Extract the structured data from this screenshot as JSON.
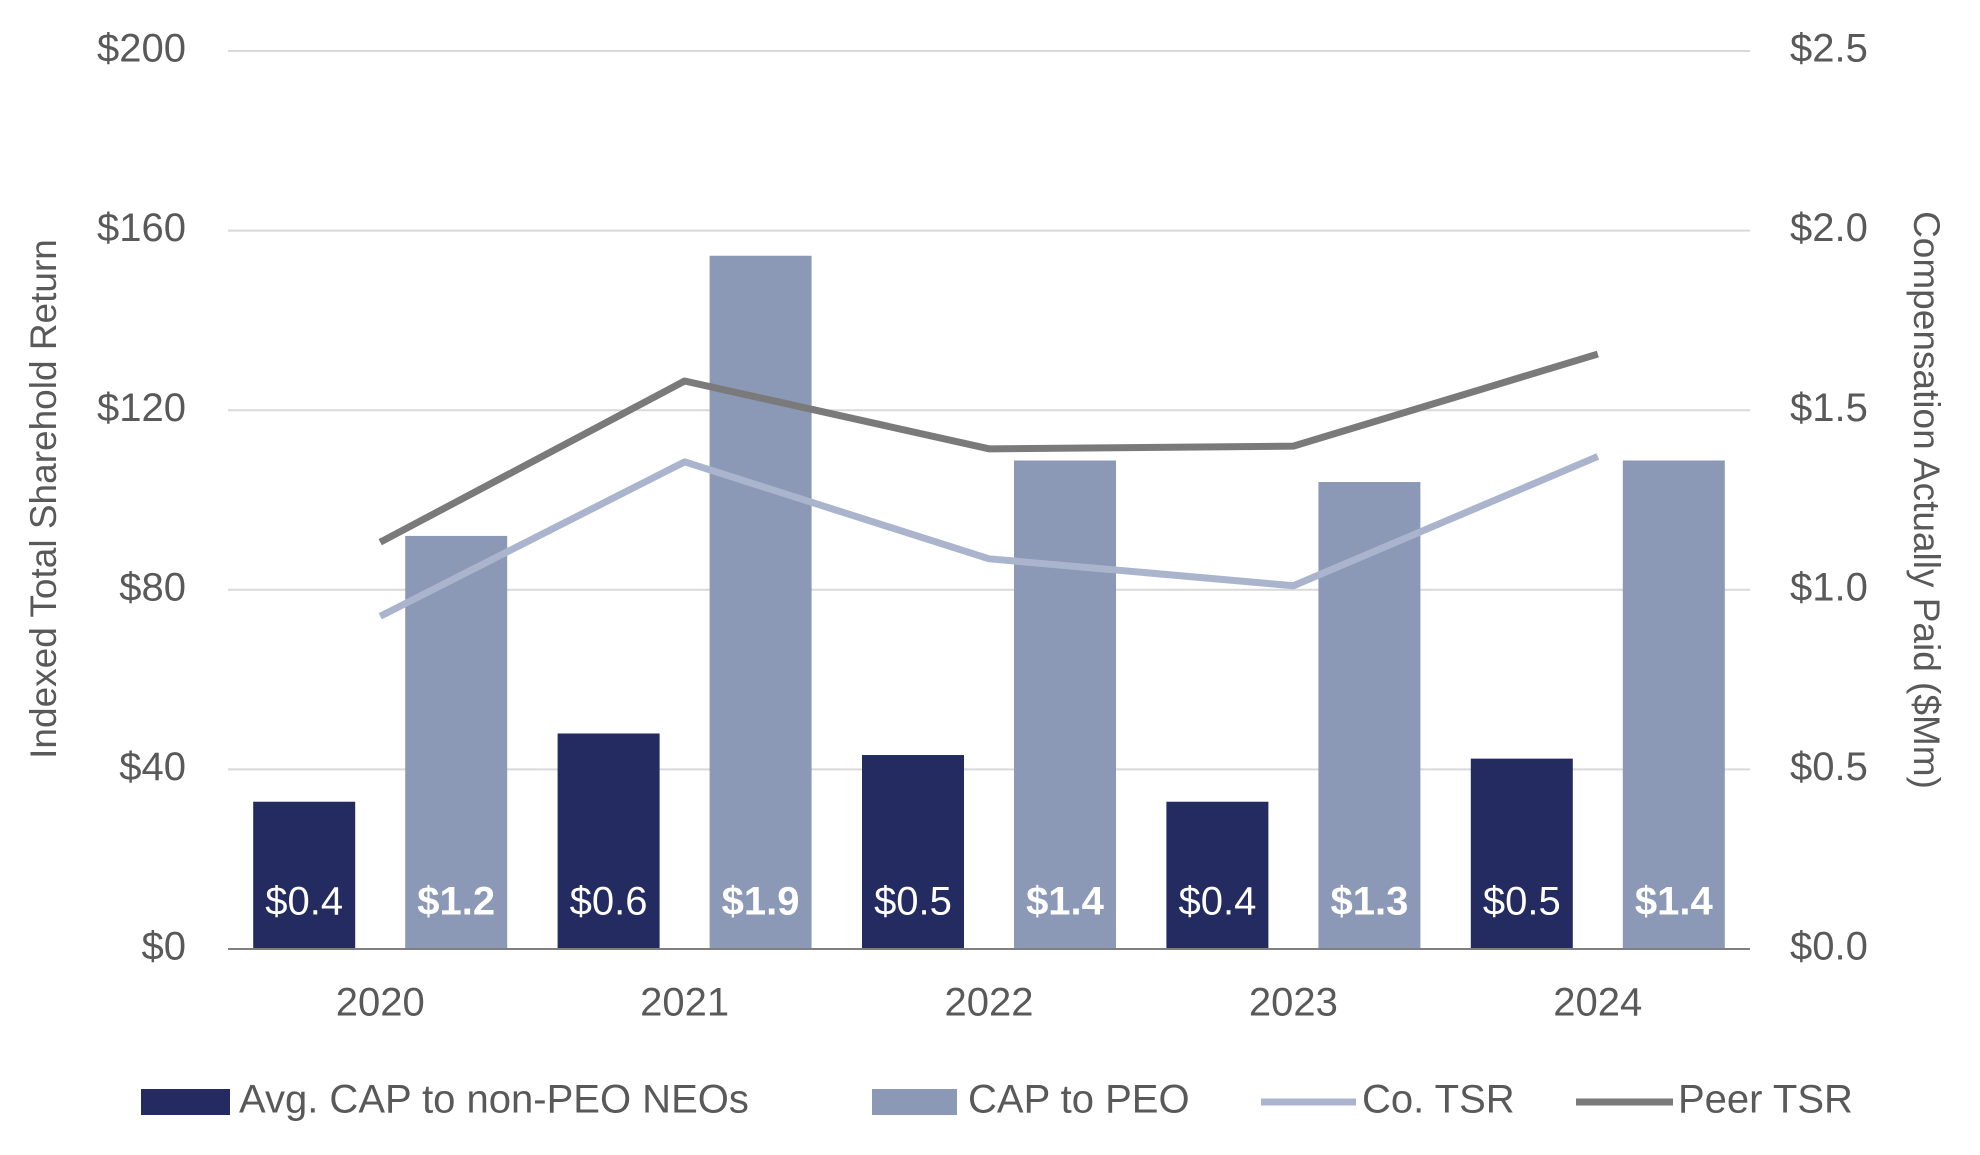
{
  "chart_data": {
    "type": "bar-line",
    "y_label": "Indexed Total Sharehold Return",
    "y2_label": "Compensation Actually Paid ($Mm)",
    "categories": [
      "2020",
      "2021",
      "2022",
      "2023",
      "2024"
    ],
    "series": [
      {
        "name": "Avg. CAP to non-PEO NEOs",
        "type": "bar",
        "axis": "y2",
        "color": "#232b60",
        "values": [
          0.41,
          0.6,
          0.54,
          0.41,
          0.53
        ],
        "value_labels": [
          "$0.4",
          "$0.6",
          "$0.5",
          "$0.4",
          "$0.5"
        ]
      },
      {
        "name": "CAP to PEO",
        "type": "bar",
        "axis": "y2",
        "color": "#8b99b6",
        "values": [
          1.15,
          1.93,
          1.36,
          1.3,
          1.36
        ],
        "value_labels": [
          "$1.2",
          "$1.9",
          "$1.4",
          "$1.3",
          "$1.4"
        ]
      },
      {
        "name": "Co. TSR",
        "type": "line",
        "color": "#aab4cc",
        "values": [
          74.1,
          108.5,
          86.9,
          80.9,
          109.7
        ]
      },
      {
        "name": "Peer TSR",
        "type": "line",
        "color": "#7a7a7a",
        "values": [
          90.6,
          126.5,
          111.4,
          112,
          132.5
        ]
      }
    ],
    "ylim": [
      0,
      200
    ],
    "yticks": [
      {
        "value": 0,
        "label": "$0"
      },
      {
        "value": 40,
        "label": "$40"
      },
      {
        "value": 80,
        "label": "$80"
      },
      {
        "value": 120,
        "label": "$120"
      },
      {
        "value": 160,
        "label": "$160"
      },
      {
        "value": 200,
        "label": "$200"
      }
    ],
    "y2lim": [
      0,
      2.5
    ],
    "y2ticks": [
      {
        "value": 0,
        "label": "$0.0"
      },
      {
        "value": 0.5,
        "label": "$0.5"
      },
      {
        "value": 1,
        "label": "$1.0"
      },
      {
        "value": 1.5,
        "label": "$1.5"
      },
      {
        "value": 2,
        "label": "$2.0"
      },
      {
        "value": 2.5,
        "label": "$2.5"
      }
    ],
    "grid": true
  }
}
